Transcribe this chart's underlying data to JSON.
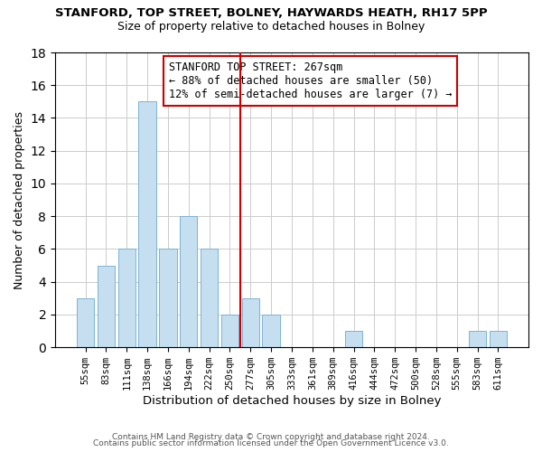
{
  "title": "STANFORD, TOP STREET, BOLNEY, HAYWARDS HEATH, RH17 5PP",
  "subtitle": "Size of property relative to detached houses in Bolney",
  "xlabel": "Distribution of detached houses by size in Bolney",
  "ylabel": "Number of detached properties",
  "bar_labels": [
    "55sqm",
    "83sqm",
    "111sqm",
    "138sqm",
    "166sqm",
    "194sqm",
    "222sqm",
    "250sqm",
    "277sqm",
    "305sqm",
    "333sqm",
    "361sqm",
    "389sqm",
    "416sqm",
    "444sqm",
    "472sqm",
    "500sqm",
    "528sqm",
    "555sqm",
    "583sqm",
    "611sqm"
  ],
  "bar_values": [
    3,
    5,
    6,
    15,
    6,
    8,
    6,
    2,
    3,
    2,
    0,
    0,
    0,
    1,
    0,
    0,
    0,
    0,
    0,
    1,
    1
  ],
  "bar_color": "#c6dff0",
  "bar_edge_color": "#7ab4d4",
  "vline_index": 8,
  "vline_color": "#cc0000",
  "annotation_title": "STANFORD TOP STREET: 267sqm",
  "annotation_line1": "← 88% of detached houses are smaller (50)",
  "annotation_line2": "12% of semi-detached houses are larger (7) →",
  "annotation_box_color": "#ffffff",
  "annotation_box_edge": "#cc0000",
  "ylim": [
    0,
    18
  ],
  "yticks": [
    0,
    2,
    4,
    6,
    8,
    10,
    12,
    14,
    16,
    18
  ],
  "footer1": "Contains HM Land Registry data © Crown copyright and database right 2024.",
  "footer2": "Contains public sector information licensed under the Open Government Licence v3.0.",
  "bg_color": "#ffffff",
  "grid_color": "#cccccc"
}
